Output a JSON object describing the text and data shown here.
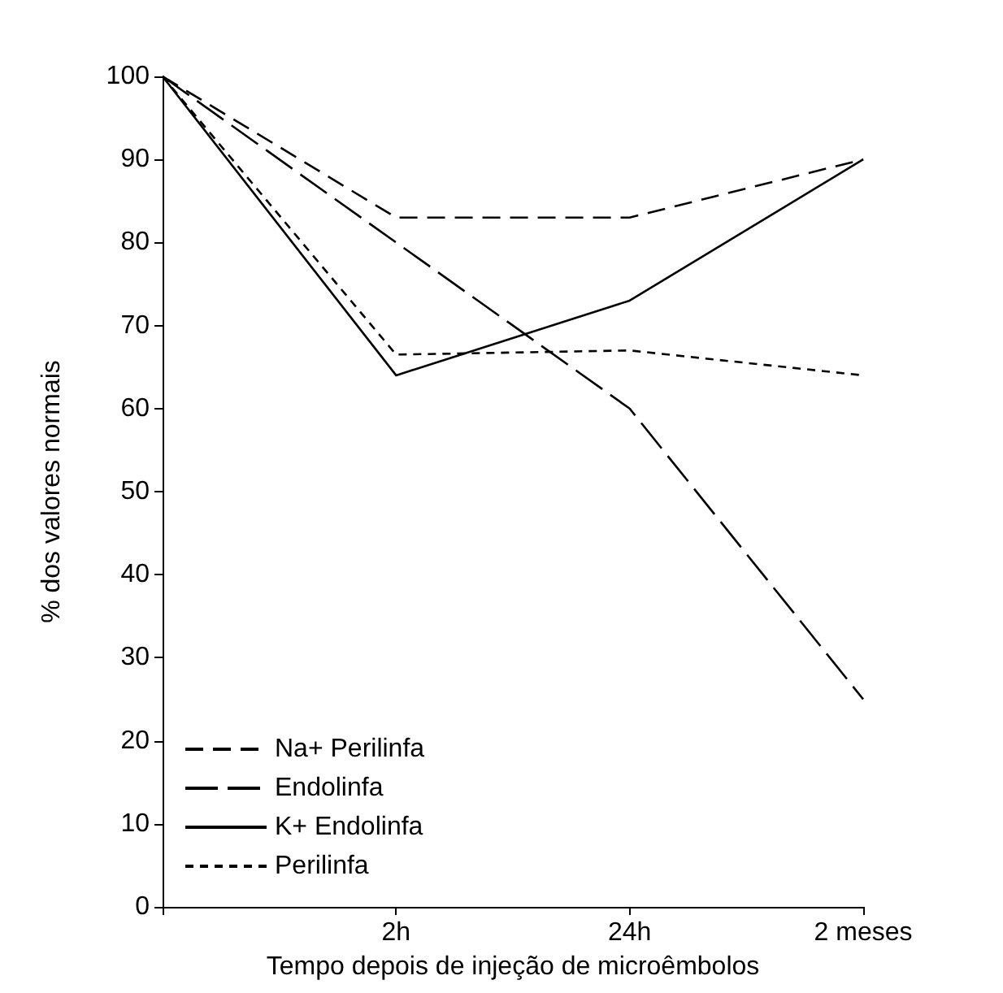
{
  "chart_data": {
    "type": "line",
    "xlabel": "Tempo depois de injeção de microêmbolos",
    "ylabel": "% dos valores normais",
    "categories": [
      null,
      "2h",
      "24h",
      "2 meses"
    ],
    "series": [
      {
        "name": "Na+ Perilinfa",
        "color": "#000000",
        "line_style": "dashed",
        "values": [
          100,
          83,
          83,
          90
        ]
      },
      {
        "name": "Endolinfa",
        "color": "#000000",
        "line_style": "dashed",
        "values": [
          100,
          80,
          60,
          25
        ]
      },
      {
        "name": "K+ Endolinfa",
        "color": "#000000",
        "line_style": "solid",
        "values": [
          100,
          64,
          73,
          90
        ]
      },
      {
        "name": "Perilinfa",
        "color": "#000000",
        "line_style": "dotted",
        "values": [
          100,
          66.5,
          67,
          64
        ]
      }
    ],
    "ylim": [
      0,
      100
    ],
    "yticks": [
      0,
      10,
      20,
      30,
      40,
      50,
      60,
      70,
      80,
      90,
      100
    ],
    "grid": false,
    "legend": "bottom left",
    "marker": "none"
  }
}
